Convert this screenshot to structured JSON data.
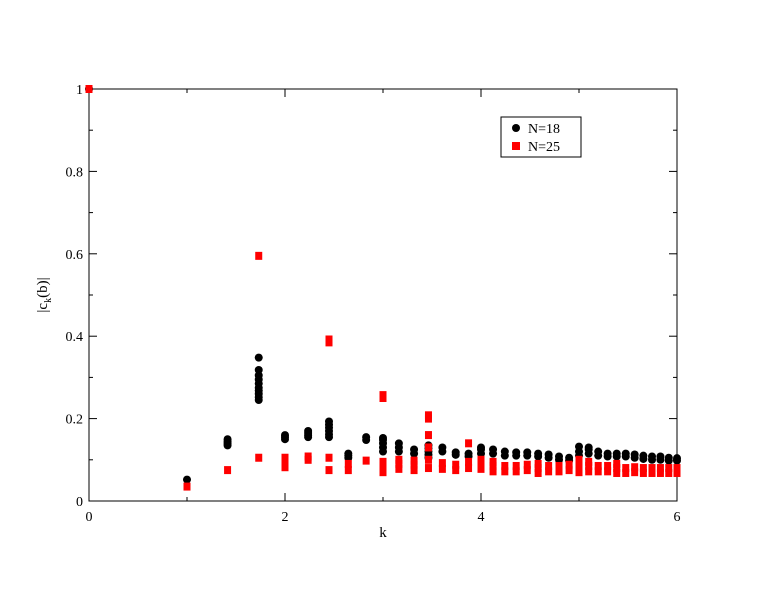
{
  "chart_data": {
    "type": "scatter",
    "title": "",
    "xlabel": "k",
    "ylabel_main": "|c",
    "ylabel_sub": "k",
    "ylabel_rest": "(b)|",
    "xlim": [
      0,
      6
    ],
    "ylim": [
      0,
      1
    ],
    "x_ticks": [
      {
        "value": 0,
        "label": "0"
      },
      {
        "value": 2,
        "label": "2"
      },
      {
        "value": 4,
        "label": "4"
      },
      {
        "value": 6,
        "label": "6"
      }
    ],
    "y_ticks": [
      {
        "value": 0,
        "label": "0"
      },
      {
        "value": 0.2,
        "label": "0.2"
      },
      {
        "value": 0.4,
        "label": "0.4"
      },
      {
        "value": 0.6,
        "label": "0.6"
      },
      {
        "value": 0.8,
        "label": "0.8"
      },
      {
        "value": 1,
        "label": "1"
      }
    ],
    "grid": false,
    "legend_position": "top-right",
    "series": [
      {
        "name": "N=18",
        "marker": "circle",
        "color": "#000000",
        "points": [
          [
            0,
            1.0
          ],
          [
            1.0,
            0.052
          ],
          [
            1.414,
            0.135
          ],
          [
            1.414,
            0.14
          ],
          [
            1.414,
            0.145
          ],
          [
            1.414,
            0.15
          ],
          [
            1.732,
            0.245
          ],
          [
            1.732,
            0.252
          ],
          [
            1.732,
            0.26
          ],
          [
            1.732,
            0.268
          ],
          [
            1.732,
            0.275
          ],
          [
            1.732,
            0.285
          ],
          [
            1.732,
            0.295
          ],
          [
            1.732,
            0.305
          ],
          [
            1.732,
            0.318
          ],
          [
            1.732,
            0.348
          ],
          [
            2.0,
            0.15
          ],
          [
            2.0,
            0.155
          ],
          [
            2.0,
            0.16
          ],
          [
            2.236,
            0.155
          ],
          [
            2.236,
            0.16
          ],
          [
            2.236,
            0.165
          ],
          [
            2.236,
            0.17
          ],
          [
            2.449,
            0.155
          ],
          [
            2.449,
            0.162
          ],
          [
            2.449,
            0.17
          ],
          [
            2.449,
            0.178
          ],
          [
            2.449,
            0.185
          ],
          [
            2.449,
            0.193
          ],
          [
            2.646,
            0.105
          ],
          [
            2.646,
            0.11
          ],
          [
            2.646,
            0.115
          ],
          [
            2.828,
            0.148
          ],
          [
            2.828,
            0.155
          ],
          [
            3.0,
            0.12
          ],
          [
            3.0,
            0.13
          ],
          [
            3.0,
            0.14
          ],
          [
            3.0,
            0.148
          ],
          [
            3.0,
            0.153
          ],
          [
            3.162,
            0.12
          ],
          [
            3.162,
            0.13
          ],
          [
            3.162,
            0.14
          ],
          [
            3.317,
            0.115
          ],
          [
            3.317,
            0.125
          ],
          [
            3.464,
            0.105
          ],
          [
            3.464,
            0.112
          ],
          [
            3.464,
            0.12
          ],
          [
            3.464,
            0.128
          ],
          [
            3.464,
            0.135
          ],
          [
            3.606,
            0.12
          ],
          [
            3.606,
            0.13
          ],
          [
            3.742,
            0.112
          ],
          [
            3.742,
            0.118
          ],
          [
            3.873,
            0.108
          ],
          [
            3.873,
            0.115
          ],
          [
            4.0,
            0.115
          ],
          [
            4.0,
            0.125
          ],
          [
            4.0,
            0.13
          ],
          [
            4.123,
            0.115
          ],
          [
            4.123,
            0.125
          ],
          [
            4.243,
            0.11
          ],
          [
            4.243,
            0.12
          ],
          [
            4.359,
            0.11
          ],
          [
            4.359,
            0.118
          ],
          [
            4.472,
            0.11
          ],
          [
            4.472,
            0.118
          ],
          [
            4.583,
            0.108
          ],
          [
            4.583,
            0.115
          ],
          [
            4.69,
            0.105
          ],
          [
            4.69,
            0.113
          ],
          [
            4.796,
            0.1
          ],
          [
            4.796,
            0.108
          ],
          [
            4.899,
            0.098
          ],
          [
            4.899,
            0.105
          ],
          [
            5.0,
            0.11
          ],
          [
            5.0,
            0.12
          ],
          [
            5.0,
            0.132
          ],
          [
            5.099,
            0.115
          ],
          [
            5.099,
            0.125
          ],
          [
            5.099,
            0.13
          ],
          [
            5.196,
            0.11
          ],
          [
            5.196,
            0.12
          ],
          [
            5.292,
            0.108
          ],
          [
            5.292,
            0.115
          ],
          [
            5.385,
            0.108
          ],
          [
            5.385,
            0.115
          ],
          [
            5.477,
            0.108
          ],
          [
            5.477,
            0.115
          ],
          [
            5.568,
            0.105
          ],
          [
            5.568,
            0.113
          ],
          [
            5.657,
            0.102
          ],
          [
            5.657,
            0.11
          ],
          [
            5.745,
            0.1
          ],
          [
            5.745,
            0.108
          ],
          [
            5.831,
            0.1
          ],
          [
            5.831,
            0.108
          ],
          [
            5.916,
            0.098
          ],
          [
            5.916,
            0.105
          ],
          [
            6.0,
            0.098
          ],
          [
            6.0,
            0.104
          ]
        ]
      },
      {
        "name": "N=25",
        "marker": "square",
        "color": "#ff0000",
        "points": [
          [
            0,
            1.0
          ],
          [
            1.0,
            0.035
          ],
          [
            1.414,
            0.075
          ],
          [
            1.732,
            0.105
          ],
          [
            1.732,
            0.595
          ],
          [
            2.0,
            0.082
          ],
          [
            2.0,
            0.098
          ],
          [
            2.0,
            0.105
          ],
          [
            2.236,
            0.1
          ],
          [
            2.236,
            0.108
          ],
          [
            2.449,
            0.075
          ],
          [
            2.449,
            0.105
          ],
          [
            2.449,
            0.385
          ],
          [
            2.449,
            0.392
          ],
          [
            2.646,
            0.075
          ],
          [
            2.646,
            0.09
          ],
          [
            2.828,
            0.098
          ],
          [
            3.0,
            0.07
          ],
          [
            3.0,
            0.08
          ],
          [
            3.0,
            0.095
          ],
          [
            3.0,
            0.25
          ],
          [
            3.0,
            0.257
          ],
          [
            3.162,
            0.078
          ],
          [
            3.162,
            0.09
          ],
          [
            3.162,
            0.1
          ],
          [
            3.317,
            0.075
          ],
          [
            3.317,
            0.088
          ],
          [
            3.317,
            0.098
          ],
          [
            3.464,
            0.08
          ],
          [
            3.464,
            0.1
          ],
          [
            3.464,
            0.13
          ],
          [
            3.464,
            0.16
          ],
          [
            3.464,
            0.2
          ],
          [
            3.464,
            0.208
          ],
          [
            3.606,
            0.078
          ],
          [
            3.606,
            0.092
          ],
          [
            3.742,
            0.075
          ],
          [
            3.742,
            0.088
          ],
          [
            3.873,
            0.08
          ],
          [
            3.873,
            0.095
          ],
          [
            3.873,
            0.14
          ],
          [
            4.0,
            0.078
          ],
          [
            4.0,
            0.09
          ],
          [
            4.0,
            0.1
          ],
          [
            4.123,
            0.072
          ],
          [
            4.123,
            0.085
          ],
          [
            4.123,
            0.095
          ],
          [
            4.243,
            0.072
          ],
          [
            4.243,
            0.085
          ],
          [
            4.359,
            0.072
          ],
          [
            4.359,
            0.085
          ],
          [
            4.472,
            0.075
          ],
          [
            4.472,
            0.088
          ],
          [
            4.583,
            0.068
          ],
          [
            4.583,
            0.08
          ],
          [
            4.583,
            0.09
          ],
          [
            4.69,
            0.072
          ],
          [
            4.69,
            0.085
          ],
          [
            4.796,
            0.072
          ],
          [
            4.796,
            0.085
          ],
          [
            4.899,
            0.075
          ],
          [
            4.899,
            0.088
          ],
          [
            5.0,
            0.07
          ],
          [
            5.0,
            0.08
          ],
          [
            5.0,
            0.09
          ],
          [
            5.0,
            0.1
          ],
          [
            5.099,
            0.072
          ],
          [
            5.099,
            0.085
          ],
          [
            5.099,
            0.095
          ],
          [
            5.196,
            0.072
          ],
          [
            5.196,
            0.085
          ],
          [
            5.292,
            0.072
          ],
          [
            5.292,
            0.085
          ],
          [
            5.385,
            0.068
          ],
          [
            5.385,
            0.08
          ],
          [
            5.385,
            0.09
          ],
          [
            5.477,
            0.068
          ],
          [
            5.477,
            0.08
          ],
          [
            5.568,
            0.07
          ],
          [
            5.568,
            0.082
          ],
          [
            5.657,
            0.068
          ],
          [
            5.657,
            0.08
          ],
          [
            5.745,
            0.068
          ],
          [
            5.745,
            0.08
          ],
          [
            5.831,
            0.068
          ],
          [
            5.831,
            0.08
          ],
          [
            5.916,
            0.068
          ],
          [
            5.916,
            0.08
          ],
          [
            6.0,
            0.068
          ],
          [
            6.0,
            0.08
          ]
        ]
      }
    ]
  }
}
